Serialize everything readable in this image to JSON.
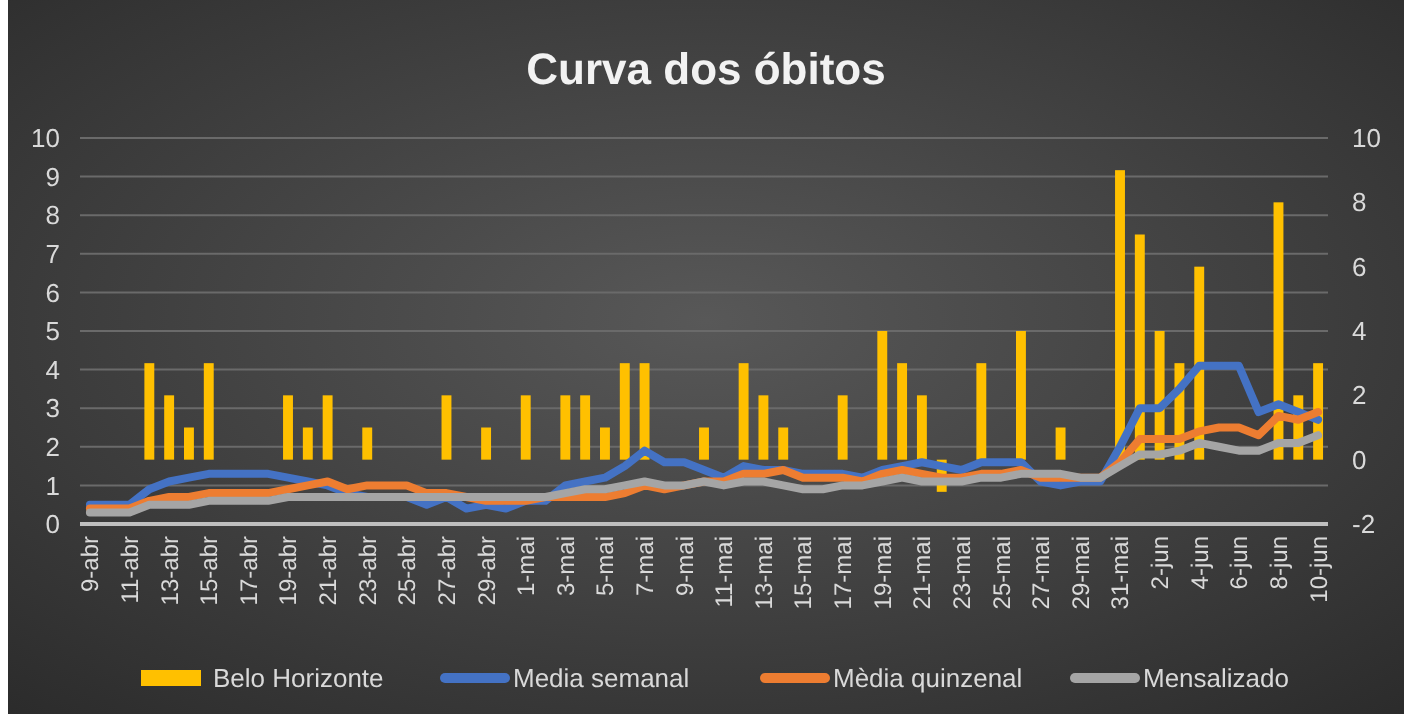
{
  "chart_data": {
    "type": "bar",
    "title": "Curva dos óbitos",
    "categories": [
      "9-abr",
      null,
      "11-abr",
      null,
      "13-abr",
      null,
      "15-abr",
      null,
      "17-abr",
      null,
      "19-abr",
      null,
      "21-abr",
      null,
      "23-abr",
      null,
      "25-abr",
      null,
      "27-abr",
      null,
      "29-abr",
      null,
      "1-mai",
      null,
      "3-mai",
      null,
      "5-mai",
      null,
      "7-mai",
      null,
      "9-mai",
      null,
      "11-mai",
      null,
      "13-mai",
      null,
      "15-mai",
      null,
      "17-mai",
      null,
      "19-mai",
      null,
      "21-mai",
      null,
      "23-mai",
      null,
      "25-mai",
      null,
      "27-mai",
      null,
      "29-mai",
      null,
      "31-mai",
      null,
      "2-jun",
      null,
      "4-jun",
      null,
      "6-jun",
      null,
      "8-jun",
      null,
      "10-jun"
    ],
    "series": [
      {
        "name": "Belo Horizonte",
        "axis": "y2",
        "color": "#ffc000",
        "values": [
          0,
          0,
          0,
          3,
          2,
          1,
          3,
          0,
          0,
          0,
          2,
          1,
          2,
          0,
          1,
          0,
          0,
          0,
          2,
          0,
          1,
          0,
          2,
          0,
          2,
          2,
          1,
          3,
          3,
          0,
          0,
          1,
          0,
          3,
          2,
          1,
          0,
          0,
          2,
          0,
          4,
          3,
          2,
          -1,
          0,
          3,
          0,
          4,
          0,
          1,
          0,
          0,
          9,
          7,
          4,
          3,
          6,
          0,
          0,
          0,
          8,
          2,
          3
        ]
      },
      {
        "name": "Media semanal",
        "type": "line",
        "color": "#4472c4",
        "values": [
          0.5,
          0.5,
          0.5,
          0.9,
          1.1,
          1.2,
          1.3,
          1.3,
          1.3,
          1.3,
          1.2,
          1.1,
          1.0,
          0.8,
          0.7,
          0.7,
          0.7,
          0.5,
          0.7,
          0.4,
          0.5,
          0.4,
          0.6,
          0.6,
          1.0,
          1.1,
          1.2,
          1.5,
          1.9,
          1.6,
          1.6,
          1.4,
          1.2,
          1.5,
          1.4,
          1.4,
          1.3,
          1.3,
          1.3,
          1.2,
          1.4,
          1.5,
          1.6,
          1.5,
          1.4,
          1.6,
          1.6,
          1.6,
          1.1,
          1.0,
          1.1,
          1.1,
          2.0,
          3.0,
          3.0,
          3.5,
          4.1,
          4.1,
          4.1,
          2.9,
          3.1,
          2.9,
          2.7
        ]
      },
      {
        "name": "Mèdia quinzenal",
        "type": "line",
        "color": "#ed7d31",
        "values": [
          0.4,
          0.4,
          0.4,
          0.6,
          0.7,
          0.7,
          0.8,
          0.8,
          0.8,
          0.8,
          0.9,
          1.0,
          1.1,
          0.9,
          1.0,
          1.0,
          1.0,
          0.8,
          0.8,
          0.7,
          0.6,
          0.6,
          0.6,
          0.7,
          0.7,
          0.7,
          0.7,
          0.8,
          1.0,
          0.9,
          1.0,
          1.1,
          1.1,
          1.3,
          1.3,
          1.4,
          1.2,
          1.2,
          1.2,
          1.1,
          1.3,
          1.4,
          1.3,
          1.2,
          1.2,
          1.3,
          1.3,
          1.4,
          1.2,
          1.2,
          1.2,
          1.2,
          1.6,
          2.2,
          2.2,
          2.2,
          2.4,
          2.5,
          2.5,
          2.3,
          2.8,
          2.7,
          2.9
        ]
      },
      {
        "name": "Mensalizado",
        "type": "line",
        "color": "#a5a5a5",
        "values": [
          0.3,
          0.3,
          0.3,
          0.5,
          0.5,
          0.5,
          0.6,
          0.6,
          0.6,
          0.6,
          0.7,
          0.7,
          0.7,
          0.7,
          0.7,
          0.7,
          0.7,
          0.7,
          0.7,
          0.7,
          0.7,
          0.7,
          0.7,
          0.7,
          0.8,
          0.9,
          0.9,
          1.0,
          1.1,
          1.0,
          1.0,
          1.1,
          1.0,
          1.1,
          1.1,
          1.0,
          0.9,
          0.9,
          1.0,
          1.0,
          1.1,
          1.2,
          1.1,
          1.1,
          1.1,
          1.2,
          1.2,
          1.3,
          1.3,
          1.3,
          1.2,
          1.2,
          1.5,
          1.8,
          1.8,
          1.9,
          2.1,
          2.0,
          1.9,
          1.9,
          2.1,
          2.1,
          2.3
        ]
      }
    ],
    "ylim": [
      0,
      10
    ],
    "yticks": [
      0,
      1,
      2,
      3,
      4,
      5,
      6,
      7,
      8,
      9,
      10
    ],
    "y2lim": [
      -2,
      10
    ],
    "y2ticks": [
      -2,
      0,
      2,
      4,
      6,
      8,
      10
    ],
    "grid": "y",
    "legend": "bottom",
    "line_style": "solid",
    "marker": "none"
  }
}
